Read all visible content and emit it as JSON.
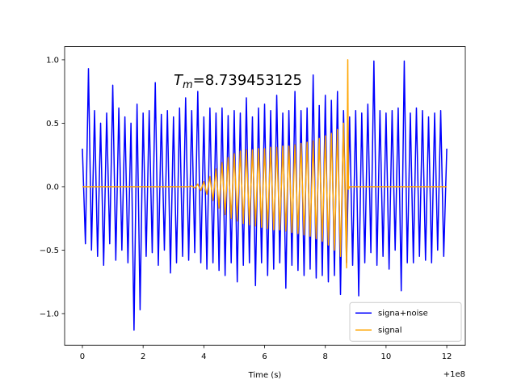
{
  "chart_data": {
    "type": "line",
    "xlabel": "Time (s)",
    "x_offset": "+1e8",
    "annotation": {
      "symbol": "T",
      "subscript": "m",
      "text": "=8.739453125"
    },
    "xlim": [
      -0.585,
      12.61
    ],
    "ylim": [
      -1.25,
      1.104
    ],
    "xticks": [
      0,
      2,
      4,
      6,
      8,
      10,
      12
    ],
    "yticks": [
      {
        "value": -1,
        "label": "−1.0"
      },
      {
        "value": -0.5,
        "label": "−0.5"
      },
      {
        "value": 0,
        "label": "0.0"
      },
      0.5,
      {
        "value": 1,
        "label": "1.0"
      }
    ],
    "grid": false,
    "legend": "lower right",
    "series": [
      {
        "name": "signa+noise",
        "color": "#0000ff",
        "x": [
          0,
          0.1,
          0.2,
          0.3,
          0.4,
          0.5,
          0.6,
          0.7,
          0.8,
          0.9,
          1,
          1.1,
          1.2,
          1.3,
          1.4,
          1.5,
          1.6,
          1.7,
          1.8,
          1.9,
          2,
          2.1,
          2.2,
          2.3,
          2.4,
          2.5,
          2.6,
          2.7,
          2.8,
          2.9,
          3,
          3.1,
          3.2,
          3.3,
          3.4,
          3.5,
          3.6,
          3.7,
          3.8,
          3.9,
          4,
          4.1,
          4.2,
          4.3,
          4.4,
          4.5,
          4.6,
          4.7,
          4.8,
          4.9,
          5,
          5.1,
          5.2,
          5.3,
          5.4,
          5.5,
          5.6,
          5.7,
          5.8,
          5.9,
          6,
          6.1,
          6.2,
          6.3,
          6.4,
          6.5,
          6.6,
          6.7,
          6.8,
          6.9,
          7,
          7.1,
          7.2,
          7.3,
          7.4,
          7.5,
          7.6,
          7.7,
          7.8,
          7.9,
          8,
          8.1,
          8.2,
          8.3,
          8.4,
          8.5,
          8.6,
          8.7,
          8.8,
          8.9,
          9,
          9.1,
          9.2,
          9.3,
          9.4,
          9.5,
          9.6,
          9.7,
          9.8,
          9.9,
          10,
          10.1,
          10.2,
          10.3,
          10.4,
          10.5,
          10.6,
          10.7,
          10.8,
          10.9,
          11,
          11.1,
          11.2,
          11.3,
          11.4,
          11.5,
          11.6,
          11.7,
          11.8,
          11.9,
          12
        ],
        "values": [
          0.3,
          -0.45,
          0.93,
          -0.5,
          0.6,
          -0.55,
          0.5,
          -0.62,
          0.58,
          -0.45,
          0.8,
          -0.58,
          0.62,
          -0.5,
          0.55,
          -0.6,
          0.5,
          -1.13,
          0.65,
          -0.97,
          0.58,
          -0.55,
          0.6,
          -0.52,
          0.82,
          -0.62,
          0.57,
          -0.5,
          0.6,
          -0.68,
          0.55,
          -0.6,
          0.62,
          -0.55,
          0.7,
          -0.58,
          0.6,
          -0.52,
          0.75,
          -0.6,
          0.55,
          -0.65,
          0.62,
          -0.6,
          0.58,
          -0.66,
          0.62,
          -0.7,
          0.56,
          -0.6,
          0.6,
          -0.75,
          0.58,
          -0.62,
          0.7,
          -0.6,
          0.55,
          -0.78,
          0.62,
          -0.6,
          0.65,
          -0.7,
          0.6,
          -0.65,
          0.72,
          -0.6,
          0.58,
          -0.8,
          0.6,
          -0.62,
          0.75,
          -0.66,
          0.6,
          -0.7,
          0.62,
          -0.65,
          0.88,
          -0.72,
          0.64,
          -0.7,
          0.72,
          -0.75,
          0.68,
          -0.7,
          0.75,
          -0.85,
          0.6,
          -0.6,
          0.55,
          -0.62,
          0.6,
          -0.86,
          0.58,
          -0.6,
          0.65,
          -0.52,
          0.99,
          -0.62,
          0.6,
          -0.55,
          0.58,
          -0.65,
          0.6,
          -0.5,
          0.62,
          -0.82,
          0.99,
          -0.6,
          0.58,
          -0.6,
          0.62,
          -0.55,
          0.6,
          -0.58,
          0.55,
          -0.6,
          0.58,
          -0.5,
          0.6,
          -0.55,
          0.3
        ]
      },
      {
        "name": "signal",
        "color": "#ffa500",
        "x": [
          0,
          3.5,
          3.6,
          3.7,
          3.8,
          3.9,
          4,
          4.1,
          4.2,
          4.3,
          4.4,
          4.5,
          4.6,
          4.7,
          4.8,
          4.9,
          5,
          5.1,
          5.2,
          5.3,
          5.4,
          5.5,
          5.6,
          5.7,
          5.8,
          5.9,
          6,
          6.1,
          6.2,
          6.3,
          6.4,
          6.5,
          6.6,
          6.7,
          6.8,
          6.9,
          7,
          7.1,
          7.2,
          7.3,
          7.4,
          7.5,
          7.6,
          7.7,
          7.8,
          7.9,
          8,
          8.1,
          8.2,
          8.3,
          8.4,
          8.5,
          8.6,
          8.7,
          8.739453125,
          8.76,
          8.8,
          12
        ],
        "values": [
          0,
          0,
          0.005,
          -0.01,
          0.02,
          -0.03,
          0.04,
          -0.06,
          0.08,
          -0.11,
          0.14,
          -0.17,
          0.19,
          -0.22,
          0.23,
          -0.25,
          0.26,
          -0.27,
          0.28,
          -0.29,
          0.29,
          -0.3,
          0.29,
          -0.31,
          0.3,
          -0.32,
          0.3,
          -0.33,
          0.31,
          -0.34,
          0.31,
          -0.34,
          0.32,
          -0.35,
          0.32,
          -0.36,
          0.33,
          -0.37,
          0.34,
          -0.38,
          0.35,
          -0.39,
          0.36,
          -0.41,
          0.38,
          -0.43,
          0.4,
          -0.46,
          0.42,
          -0.5,
          0.45,
          -0.55,
          0.5,
          -0.64,
          1,
          -0.02,
          0,
          0
        ]
      }
    ]
  }
}
